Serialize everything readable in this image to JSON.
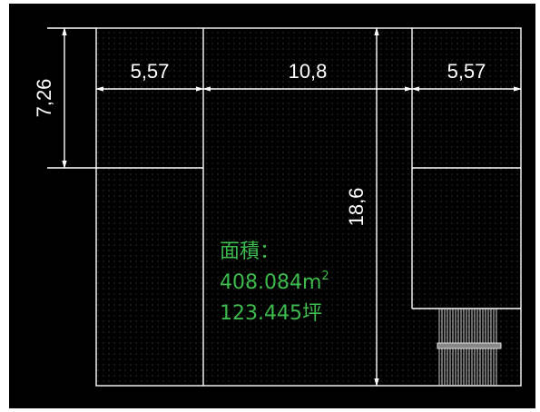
{
  "dimensions": {
    "top_left": "5,57",
    "top_mid": "10,8",
    "top_right": "5,57",
    "left_height": "7,26",
    "center_height": "18,6"
  },
  "area": {
    "label": "面積：",
    "m2_value": "408.084m",
    "m2_sup": "2",
    "ping_value": "123.445坪"
  },
  "colors": {
    "background": "#000000",
    "lines": "#ffffff",
    "area_text": "#3dbb4e"
  }
}
